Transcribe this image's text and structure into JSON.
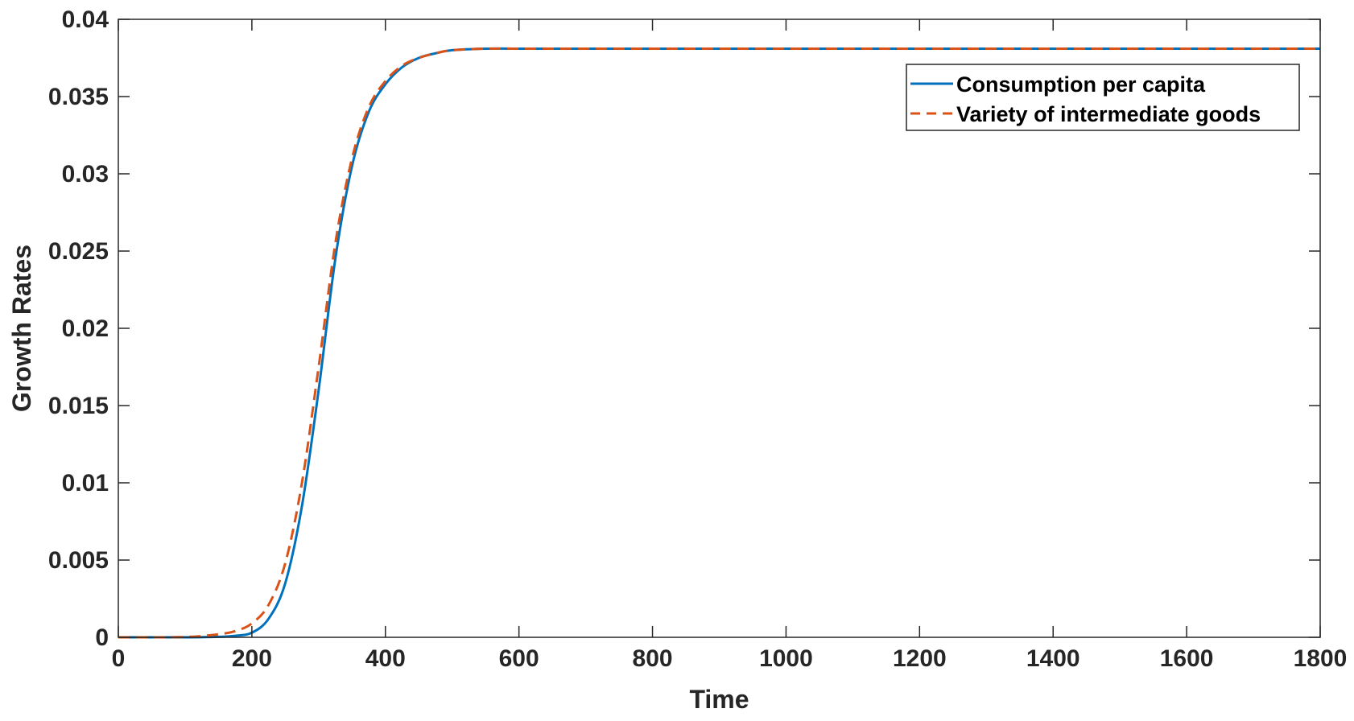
{
  "chart_data": {
    "type": "line",
    "xlabel": "Time",
    "ylabel": "Growth Rates",
    "xlim": [
      0,
      1800
    ],
    "ylim": [
      0,
      0.04
    ],
    "xticks": [
      0,
      200,
      400,
      600,
      800,
      1000,
      1200,
      1400,
      1600,
      1800
    ],
    "xtick_labels": [
      "0",
      "200",
      "400",
      "600",
      "800",
      "1000",
      "1200",
      "1400",
      "1600",
      "1800"
    ],
    "yticks": [
      0,
      0.005,
      0.01,
      0.015,
      0.02,
      0.025,
      0.03,
      0.035,
      0.04
    ],
    "ytick_labels": [
      "0",
      "0.005",
      "0.01",
      "0.015",
      "0.02",
      "0.025",
      "0.03",
      "0.035",
      "0.04"
    ],
    "grid": false,
    "legend_position": "top-right",
    "series": [
      {
        "name": "Consumption per capita",
        "color": "#0072BD",
        "style": "solid",
        "x": [
          0,
          100,
          150,
          175,
          200,
          225,
          250,
          275,
          300,
          325,
          350,
          375,
          400,
          425,
          450,
          475,
          500,
          550,
          600,
          700,
          800,
          1000,
          1200,
          1400,
          1600,
          1800
        ],
        "y": [
          0,
          0,
          3e-05,
          0.0001,
          0.0003,
          0.0012,
          0.0035,
          0.0085,
          0.016,
          0.0245,
          0.0305,
          0.034,
          0.0358,
          0.0369,
          0.0375,
          0.0378,
          0.038,
          0.0381,
          0.0381,
          0.0381,
          0.0381,
          0.0381,
          0.0381,
          0.0381,
          0.0381,
          0.0381
        ]
      },
      {
        "name": "Variety of intermediate goods",
        "color": "#D95319",
        "style": "dashed",
        "x": [
          0,
          100,
          150,
          175,
          200,
          225,
          250,
          275,
          300,
          325,
          350,
          375,
          400,
          425,
          450,
          475,
          500,
          550,
          600,
          700,
          800,
          1000,
          1200,
          1400,
          1600,
          1800
        ],
        "y": [
          0,
          2e-05,
          0.0002,
          0.0004,
          0.0009,
          0.0021,
          0.0048,
          0.01,
          0.0175,
          0.0255,
          0.031,
          0.0343,
          0.036,
          0.037,
          0.0375,
          0.0378,
          0.038,
          0.0381,
          0.0381,
          0.0381,
          0.0381,
          0.0381,
          0.0381,
          0.0381,
          0.0381,
          0.0381
        ]
      }
    ]
  }
}
